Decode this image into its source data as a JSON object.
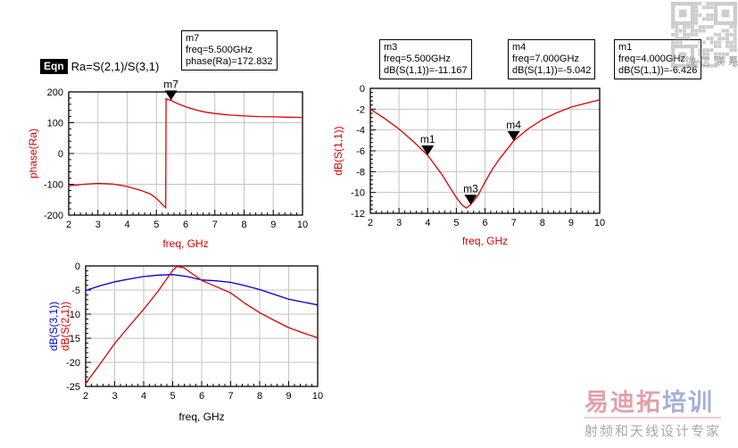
{
  "equation": {
    "badge": "Eqn",
    "expression": "Ra=S(2,1)/S(3,1)"
  },
  "marker_boxes": [
    {
      "id": "m7",
      "lines": [
        "m7",
        "freq=5.500GHz",
        "phase(Ra)=172.832"
      ]
    },
    {
      "id": "m3",
      "lines": [
        "m3",
        "freq=5.500GHz",
        "dB(S(1,1))=-11.167"
      ]
    },
    {
      "id": "m4",
      "lines": [
        "m4",
        "freq=7.000GHz",
        "dB(S(1,1))=-5.042"
      ]
    },
    {
      "id": "m1",
      "lines": [
        "m1",
        "freq=4.000GHz",
        "dB(S(1,1))=-6.426"
      ]
    }
  ],
  "colors": {
    "curve_red": "#dd0000",
    "curve_blue": "#0000cc",
    "grid": "#c3c3c3",
    "frame": "#000000"
  },
  "chart_data": [
    {
      "type": "line",
      "title": "",
      "xlabel": "freq, GHz",
      "xlabel_color": "#dd0000",
      "ylabels": [
        {
          "text": "phase(Ra)",
          "color": "#dd0000"
        }
      ],
      "xlim": [
        2,
        10
      ],
      "ylim": [
        -200,
        200
      ],
      "xticks": [
        2,
        3,
        4,
        5,
        6,
        7,
        8,
        9,
        10
      ],
      "yticks": [
        -200,
        -100,
        0,
        100,
        200
      ],
      "grid": true,
      "legend": "none",
      "series": [
        {
          "name": "phase(Ra)",
          "color": "#dd0000",
          "x": [
            2,
            2.5,
            3,
            3.5,
            4,
            4.5,
            4.8,
            5.0,
            5.15,
            5.25,
            5.32,
            5.33,
            5.4,
            5.5,
            5.7,
            6.0,
            6.3,
            6.7,
            7.0,
            7.5,
            8.0,
            8.5,
            9.0,
            9.5,
            10.0
          ],
          "y": [
            -105,
            -100,
            -97,
            -99,
            -107,
            -121,
            -132,
            -146,
            -160,
            -170,
            -176,
            178,
            175,
            172.8,
            163,
            152,
            143,
            134,
            130,
            125,
            122,
            120,
            119,
            118,
            117
          ]
        }
      ],
      "markers": [
        {
          "label": "m7",
          "x": 5.5,
          "y": 172.832
        }
      ]
    },
    {
      "type": "line",
      "title": "",
      "xlabel": "freq, GHz",
      "xlabel_color": "#dd0000",
      "ylabels": [
        {
          "text": "dB(S(1,1))",
          "color": "#dd0000"
        }
      ],
      "xlim": [
        2,
        10
      ],
      "ylim": [
        -12,
        0
      ],
      "xticks": [
        2,
        3,
        4,
        5,
        6,
        7,
        8,
        9,
        10
      ],
      "yticks": [
        0,
        -2,
        -4,
        -6,
        -8,
        -10,
        -12
      ],
      "grid": true,
      "legend": "none",
      "series": [
        {
          "name": "dB(S(1,1))",
          "color": "#dd0000",
          "x": [
            2,
            2.5,
            3,
            3.5,
            4,
            4.5,
            5,
            5.2,
            5.35,
            5.5,
            5.75,
            6,
            6.25,
            6.5,
            7,
            7.5,
            8,
            8.5,
            9,
            9.5,
            10
          ],
          "y": [
            -2.0,
            -2.9,
            -3.9,
            -5.1,
            -6.43,
            -8.3,
            -10.5,
            -11.2,
            -11.5,
            -11.17,
            -10.3,
            -9.0,
            -7.8,
            -6.8,
            -5.04,
            -3.9,
            -3.0,
            -2.35,
            -1.8,
            -1.45,
            -1.1
          ]
        }
      ],
      "markers": [
        {
          "label": "m1",
          "x": 4.0,
          "y": -6.426
        },
        {
          "label": "m3",
          "x": 5.5,
          "y": -11.167
        },
        {
          "label": "m4",
          "x": 7.0,
          "y": -5.042
        }
      ]
    },
    {
      "type": "line",
      "title": "",
      "xlabel": "freq, GHz",
      "xlabel_color": "#000000",
      "ylabels": [
        {
          "text": "dB(S(3,1))",
          "color": "#0000cc"
        },
        {
          "text": "dB(S(2,1))",
          "color": "#dd0000"
        }
      ],
      "xlim": [
        2,
        10
      ],
      "ylim": [
        -25,
        0
      ],
      "xticks": [
        2,
        3,
        4,
        5,
        6,
        7,
        8,
        9,
        10
      ],
      "yticks": [
        0,
        -5,
        -10,
        -15,
        -20,
        -25
      ],
      "grid": true,
      "legend": "none",
      "series": [
        {
          "name": "dB(S(3,1))",
          "color": "#0000cc",
          "x": [
            2,
            2.5,
            3,
            3.5,
            4,
            4.5,
            5,
            5.5,
            6,
            6.5,
            7,
            7.5,
            8,
            8.5,
            9,
            9.5,
            10
          ],
          "y": [
            -5.1,
            -4.1,
            -3.3,
            -2.7,
            -2.2,
            -1.9,
            -1.8,
            -2.2,
            -2.9,
            -3.1,
            -3.4,
            -4.1,
            -4.9,
            -5.9,
            -6.9,
            -7.5,
            -8.1
          ]
        },
        {
          "name": "dB(S(2,1))",
          "color": "#dd0000",
          "x": [
            2,
            2.5,
            3,
            3.5,
            4,
            4.5,
            5,
            5.15,
            5.4,
            5.6,
            6,
            6.5,
            7,
            7.5,
            8,
            8.5,
            9,
            9.5,
            10
          ],
          "y": [
            -24.4,
            -20.3,
            -16.1,
            -12.5,
            -9.0,
            -5.2,
            -0.9,
            -0.1,
            -0.4,
            -1.3,
            -3.0,
            -4.3,
            -5.6,
            -7.8,
            -9.7,
            -11.3,
            -12.8,
            -13.9,
            -14.9
          ]
        }
      ],
      "markers": []
    }
  ],
  "watermark": {
    "qr_caption": "微信联系",
    "brand_pink": "易迪拓",
    "brand_blue": "培训",
    "tagline": "射频和天线设计专家",
    "brand_pink_color": "#d98a96",
    "brand_blue_color": "#8f9cd0",
    "tagline_color": "#9a9a9a"
  }
}
